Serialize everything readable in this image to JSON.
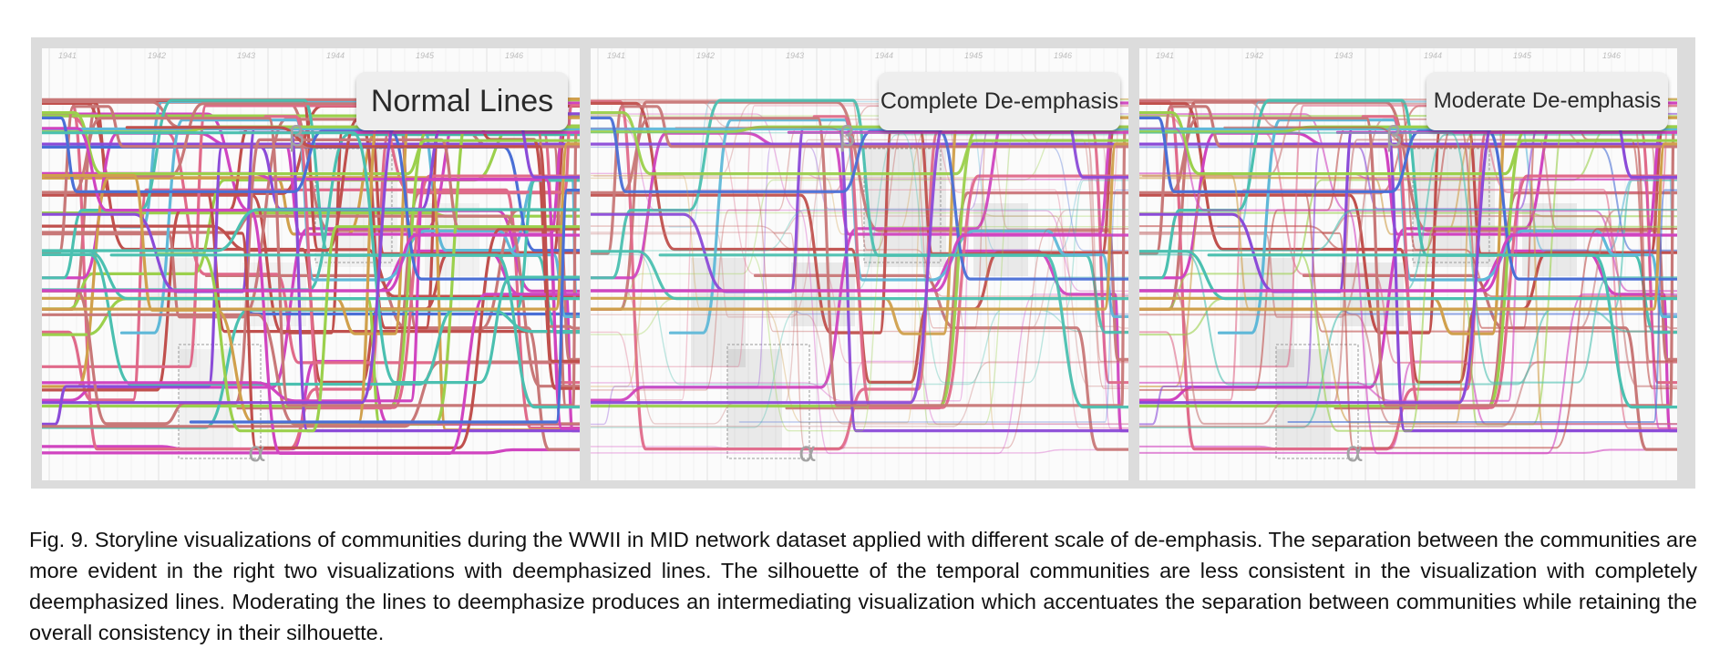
{
  "figure": {
    "panels": [
      {
        "label": "Normal Lines",
        "mode": "normal"
      },
      {
        "label": "Complete De-emphasis",
        "mode": "complete"
      },
      {
        "label": "Moderate De-emphasis",
        "mode": "moderate"
      }
    ],
    "years": [
      "1941",
      "1942",
      "1943",
      "1944",
      "1945",
      "1946"
    ],
    "region_labels": {
      "alpha": "α",
      "beta": "β"
    },
    "line_colors": [
      "#c0504d",
      "#8b4bd8",
      "#4bc0b0",
      "#9bd04c",
      "#d044c0",
      "#4a6fd6",
      "#d0a04c",
      "#c87878",
      "#5fb8d8",
      "#e06a8a"
    ]
  },
  "caption": "Fig. 9. Storyline visualizations of communities during the WWII in MID network dataset applied with different scale of de-emphasis. The separation between the communities are more evident in the right two visualizations with deemphasized lines.  The silhouette of the temporal communities are less consistent in the visualization with completely deemphasized lines.  Moderating the lines to deemphasize produces an intermediating visualization which accentuates the separation between communities while retaining the overall consistency in their silhouette."
}
